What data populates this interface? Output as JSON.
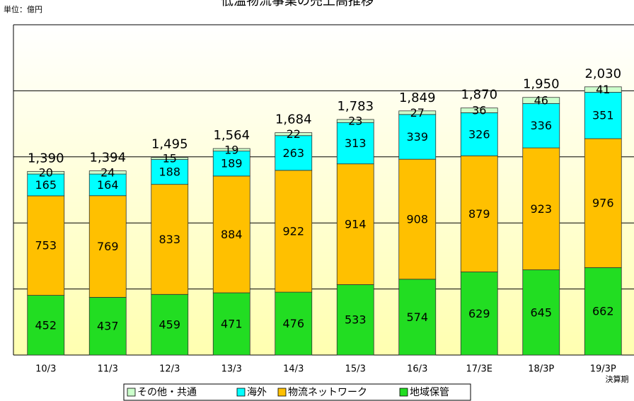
{
  "chart_data": {
    "type": "stacked_bar",
    "title": "低温物流事業の売上高推移",
    "unit_label": "単位：億円",
    "x_label": "決算期",
    "categories": [
      "10/3",
      "11/3",
      "12/3",
      "13/3",
      "14/3",
      "15/3",
      "16/3",
      "17/3E",
      "18/3P",
      "19/3P"
    ],
    "series": [
      {
        "name": "地域保管",
        "color": "#22dd22",
        "values": [
          452,
          437,
          459,
          471,
          476,
          533,
          574,
          629,
          645,
          662
        ]
      },
      {
        "name": "物流ネットワーク",
        "color": "#ffc000",
        "values": [
          753,
          769,
          833,
          884,
          922,
          914,
          908,
          879,
          923,
          976
        ]
      },
      {
        "name": "海外",
        "color": "#00ffff",
        "values": [
          165,
          164,
          188,
          189,
          263,
          313,
          339,
          326,
          336,
          351
        ]
      },
      {
        "name": "その他・共通",
        "color": "#ccffcc",
        "values": [
          20,
          24,
          15,
          19,
          22,
          23,
          27,
          36,
          46,
          41
        ]
      }
    ],
    "total_labels": [
      "1,390",
      "1,394",
      "1,495",
      "1,564",
      "1,684",
      "1,783",
      "1,849",
      "1,870",
      "1,950",
      "2,030"
    ],
    "ylim": [
      0,
      2500
    ],
    "yticks": [
      0,
      500,
      1000,
      1500,
      2000,
      2500
    ],
    "grid": true
  }
}
